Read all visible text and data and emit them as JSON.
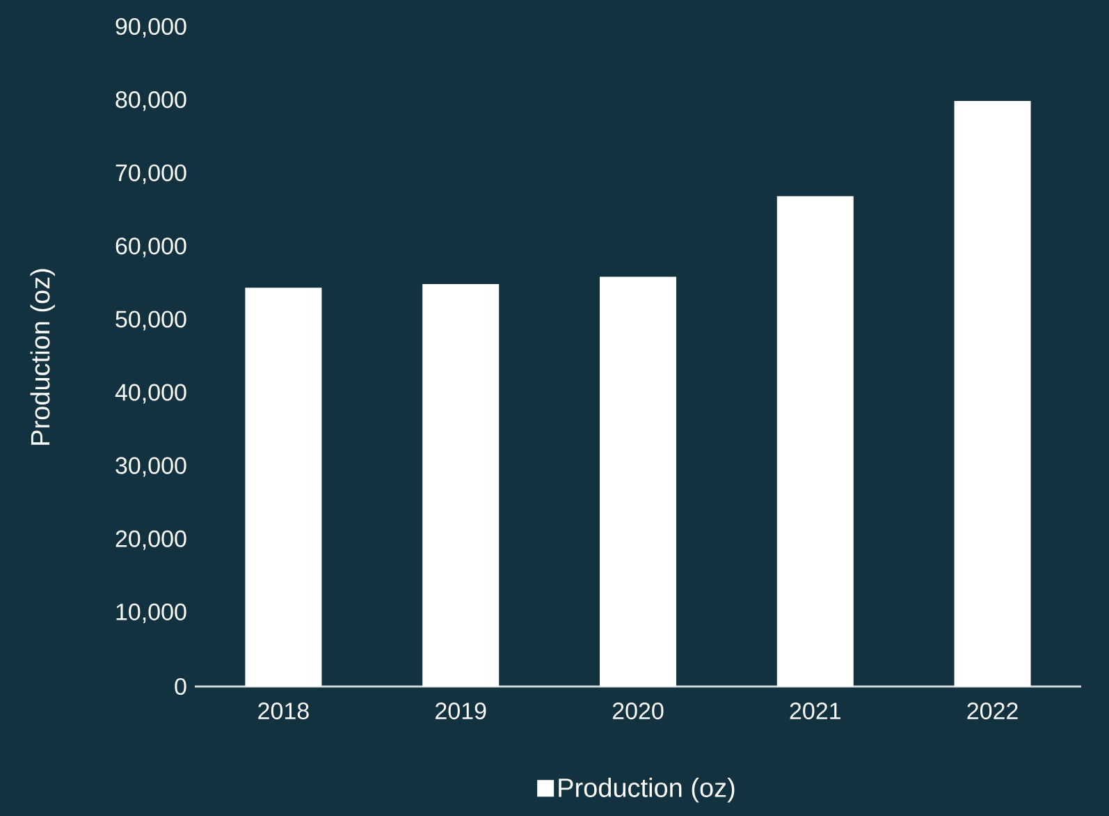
{
  "chart_data": {
    "type": "bar",
    "ylabel": "Production (oz)",
    "categories": [
      "2018",
      "2019",
      "2020",
      "2021",
      "2022"
    ],
    "series": [
      {
        "name": "Production (oz)",
        "color": "#ffffff",
        "values": [
          54500,
          55000,
          56000,
          67000,
          80000
        ]
      }
    ],
    "ylim": [
      0,
      90000
    ],
    "yticks": [
      {
        "value": 0,
        "label": "0"
      },
      {
        "value": 10000,
        "label": "10,000"
      },
      {
        "value": 20000,
        "label": "20,000"
      },
      {
        "value": 30000,
        "label": "30,000"
      },
      {
        "value": 40000,
        "label": "40,000"
      },
      {
        "value": 50000,
        "label": "50,000"
      },
      {
        "value": 60000,
        "label": "60,000"
      },
      {
        "value": 70000,
        "label": "70,000"
      },
      {
        "value": 80000,
        "label": "80,000"
      },
      {
        "value": 90000,
        "label": "90,000"
      }
    ],
    "grid": false,
    "legend": "bottom"
  }
}
